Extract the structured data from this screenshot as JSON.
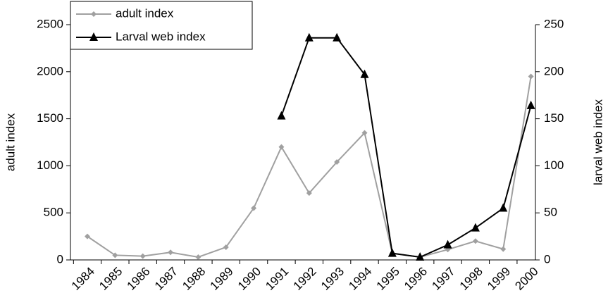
{
  "chart_data": {
    "type": "line",
    "categories": [
      "1984",
      "1985",
      "1986",
      "1987",
      "1988",
      "1989",
      "1990",
      "1991",
      "1992",
      "1993",
      "1994",
      "1995",
      "1996",
      "1997",
      "1998",
      "1999",
      "2000"
    ],
    "series": [
      {
        "name": "adult index",
        "color": "#a0a0a0",
        "marker": "diamond",
        "axis": "y",
        "values": [
          250,
          50,
          40,
          80,
          30,
          135,
          550,
          1200,
          710,
          1040,
          1350,
          70,
          30,
          110,
          200,
          115,
          1950
        ]
      },
      {
        "name": "Larval web index",
        "color": "#000000",
        "marker": "triangle",
        "axis": "y2",
        "values": [
          null,
          null,
          null,
          null,
          null,
          null,
          null,
          153,
          236,
          236,
          197,
          7,
          3,
          16,
          34,
          55,
          164
        ]
      }
    ],
    "ylabel": "adult index",
    "y2label": "larval web index",
    "ylim": [
      0,
      2500
    ],
    "yticks": [
      0,
      500,
      1000,
      1500,
      2000,
      2500
    ],
    "y2lim": [
      0,
      250
    ],
    "y2ticks": [
      0,
      50,
      100,
      150,
      200,
      250
    ],
    "legend": "upper left"
  }
}
